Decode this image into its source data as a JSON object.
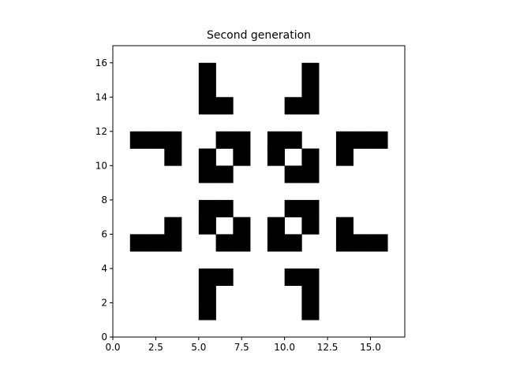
{
  "chart_data": {
    "type": "heatmap",
    "title": "Second generation",
    "xlabel": "",
    "ylabel": "",
    "xlim": [
      0,
      17
    ],
    "ylim": [
      0,
      17
    ],
    "xticks": [
      0,
      2.5,
      5,
      7.5,
      10,
      12.5,
      15
    ],
    "xtick_labels": [
      "0.0",
      "2.5",
      "5.0",
      "7.5",
      "10.0",
      "12.5",
      "15.0"
    ],
    "yticks": [
      0,
      2,
      4,
      6,
      8,
      10,
      12,
      14,
      16
    ],
    "ytick_labels": [
      "0",
      "2",
      "4",
      "6",
      "8",
      "10",
      "12",
      "14",
      "16"
    ],
    "grid": false,
    "cell_colors": {
      "alive": "#000000",
      "dead": "#ffffff"
    },
    "alive_cells": [
      [
        5,
        15
      ],
      [
        5,
        14
      ],
      [
        5,
        13
      ],
      [
        6,
        13
      ],
      [
        11,
        15
      ],
      [
        11,
        14
      ],
      [
        11,
        13
      ],
      [
        10,
        13
      ],
      [
        1,
        11
      ],
      [
        2,
        11
      ],
      [
        3,
        11
      ],
      [
        3,
        10
      ],
      [
        13,
        11
      ],
      [
        14,
        11
      ],
      [
        15,
        11
      ],
      [
        13,
        10
      ],
      [
        6,
        11
      ],
      [
        7,
        11
      ],
      [
        7,
        10
      ],
      [
        5,
        10
      ],
      [
        5,
        9
      ],
      [
        6,
        9
      ],
      [
        9,
        11
      ],
      [
        10,
        11
      ],
      [
        9,
        10
      ],
      [
        11,
        10
      ],
      [
        10,
        9
      ],
      [
        11,
        9
      ],
      [
        5,
        7
      ],
      [
        6,
        7
      ],
      [
        5,
        6
      ],
      [
        7,
        6
      ],
      [
        6,
        5
      ],
      [
        7,
        5
      ],
      [
        10,
        7
      ],
      [
        11,
        7
      ],
      [
        9,
        6
      ],
      [
        11,
        6
      ],
      [
        9,
        5
      ],
      [
        10,
        5
      ],
      [
        3,
        6
      ],
      [
        1,
        5
      ],
      [
        2,
        5
      ],
      [
        3,
        5
      ],
      [
        13,
        6
      ],
      [
        13,
        5
      ],
      [
        14,
        5
      ],
      [
        15,
        5
      ],
      [
        5,
        3
      ],
      [
        6,
        3
      ],
      [
        5,
        2
      ],
      [
        5,
        1
      ],
      [
        10,
        3
      ],
      [
        11,
        3
      ],
      [
        11,
        2
      ],
      [
        11,
        1
      ]
    ]
  }
}
